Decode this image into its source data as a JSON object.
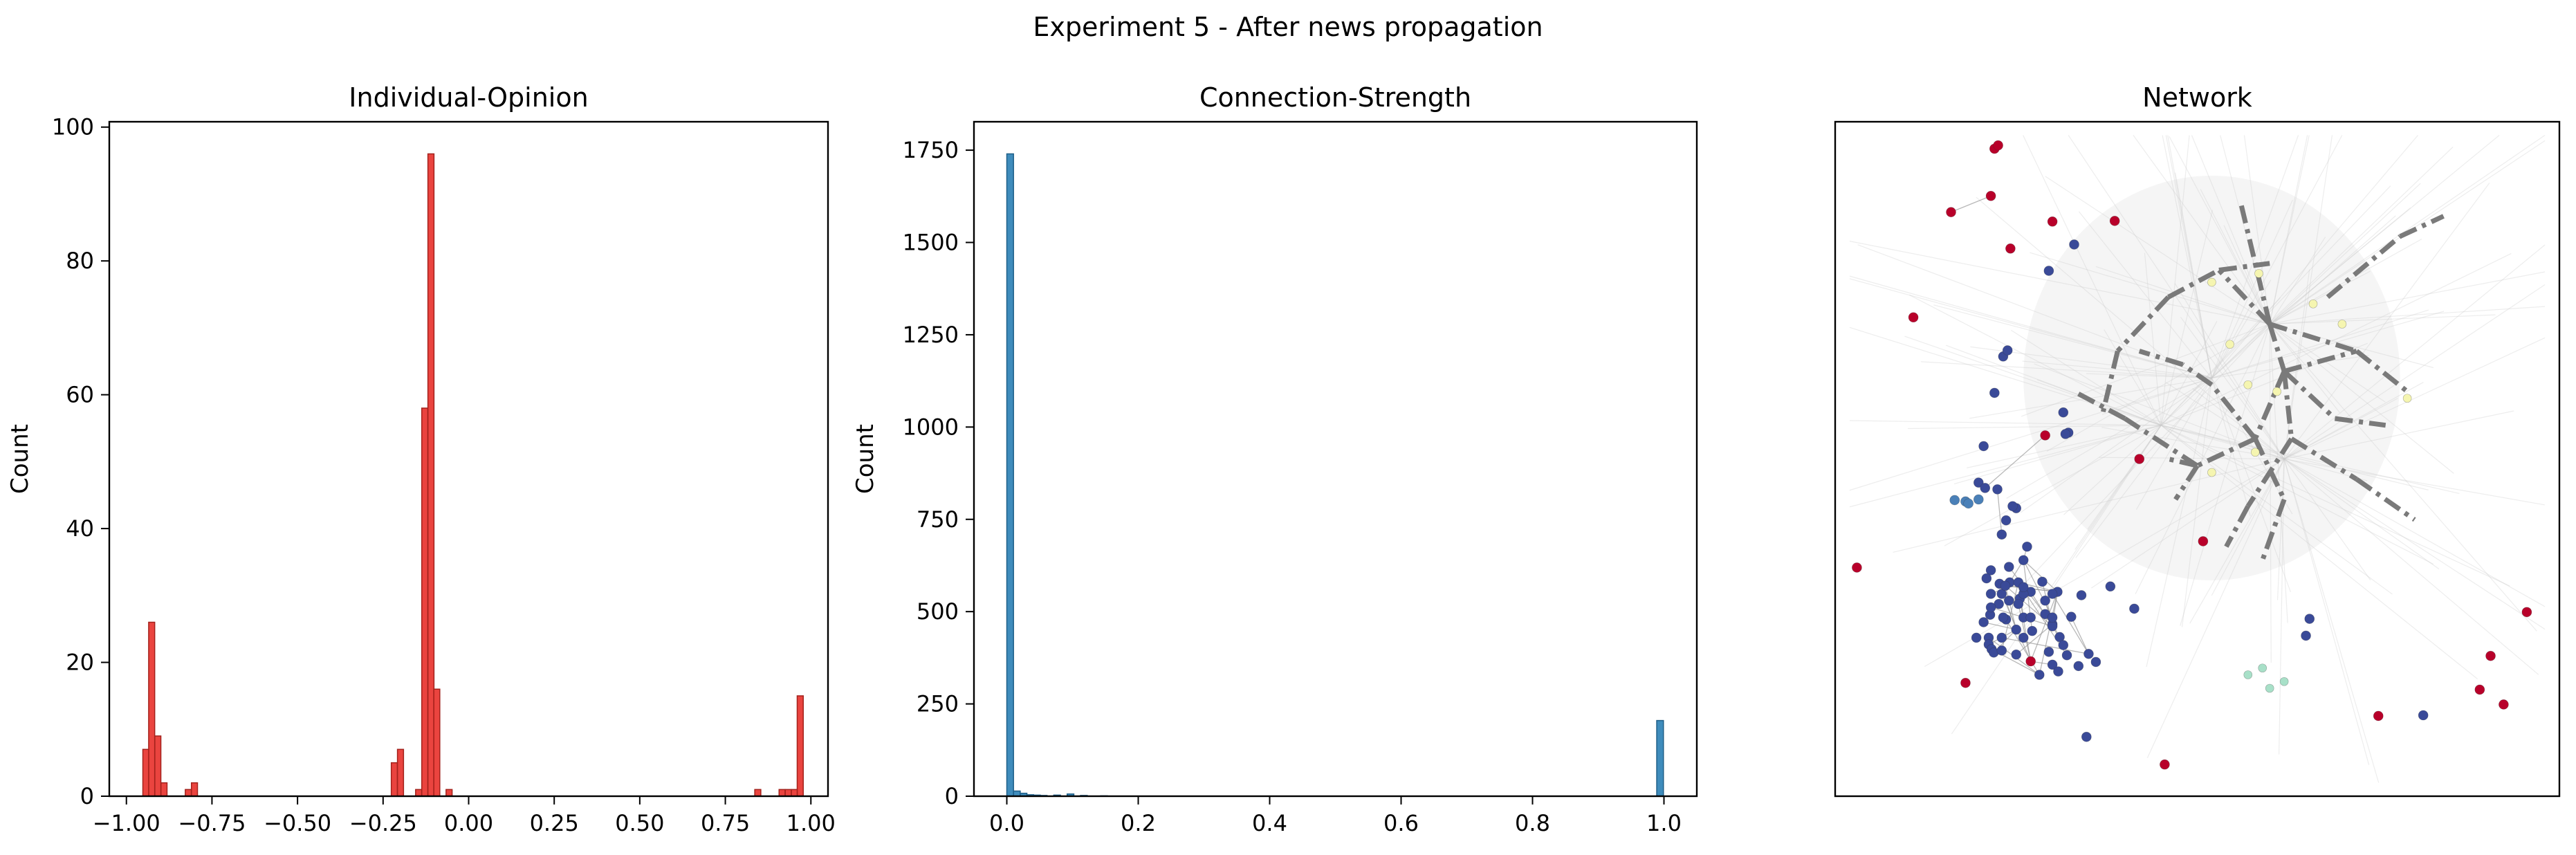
{
  "figure": {
    "suptitle": "Experiment 5 - After news propagation"
  },
  "chart_data": [
    {
      "type": "bar",
      "title": "Individual-Opinion",
      "xlabel": "",
      "ylabel": "Count",
      "xlim": [
        -1.05,
        1.05
      ],
      "ylim": [
        0,
        100.8
      ],
      "xticks": [
        -1.0,
        -0.75,
        -0.5,
        -0.25,
        0.0,
        0.25,
        0.5,
        0.75,
        1.0
      ],
      "xtick_labels": [
        "−1.00",
        "−0.75",
        "−0.50",
        "−0.25",
        "0.00",
        "0.25",
        "0.50",
        "0.75",
        "1.00"
      ],
      "yticks": [
        0,
        20,
        40,
        60,
        80,
        100
      ],
      "ytick_labels": [
        "0",
        "20",
        "40",
        "60",
        "80",
        "100"
      ],
      "bin_width": 0.0177,
      "color": "#e8302a",
      "edge_color": "#a3221c",
      "bins": [
        {
          "x": -0.952,
          "count": 7
        },
        {
          "x": -0.935,
          "count": 26
        },
        {
          "x": -0.917,
          "count": 9
        },
        {
          "x": -0.899,
          "count": 2
        },
        {
          "x": -0.828,
          "count": 1
        },
        {
          "x": -0.81,
          "count": 2
        },
        {
          "x": -0.226,
          "count": 5
        },
        {
          "x": -0.208,
          "count": 7
        },
        {
          "x": -0.155,
          "count": 1
        },
        {
          "x": -0.137,
          "count": 58
        },
        {
          "x": -0.119,
          "count": 96
        },
        {
          "x": -0.102,
          "count": 16
        },
        {
          "x": -0.066,
          "count": 1
        },
        {
          "x": 0.836,
          "count": 1
        },
        {
          "x": 0.907,
          "count": 1
        },
        {
          "x": 0.925,
          "count": 1
        },
        {
          "x": 0.943,
          "count": 1
        },
        {
          "x": 0.96,
          "count": 15
        }
      ]
    },
    {
      "type": "bar",
      "title": "Connection-Strength",
      "xlabel": "",
      "ylabel": "Count",
      "xlim": [
        -0.05,
        1.05
      ],
      "ylim": [
        0,
        1827
      ],
      "xticks": [
        0.0,
        0.2,
        0.4,
        0.6,
        0.8,
        1.0
      ],
      "xtick_labels": [
        "0.0",
        "0.2",
        "0.4",
        "0.6",
        "0.8",
        "1.0"
      ],
      "yticks": [
        0,
        250,
        500,
        750,
        1000,
        1250,
        1500,
        1750
      ],
      "ytick_labels": [
        "0",
        "250",
        "500",
        "750",
        "1000",
        "1250",
        "1500",
        "1750"
      ],
      "bin_width": 0.0102,
      "color": "#2a7fb5",
      "edge_color": "#1f5f88",
      "bins": [
        {
          "x": 0.0,
          "count": 1740
        },
        {
          "x": 0.0102,
          "count": 14
        },
        {
          "x": 0.0204,
          "count": 8
        },
        {
          "x": 0.0306,
          "count": 4
        },
        {
          "x": 0.0408,
          "count": 3
        },
        {
          "x": 0.051,
          "count": 2
        },
        {
          "x": 0.0714,
          "count": 3
        },
        {
          "x": 0.0918,
          "count": 6
        },
        {
          "x": 0.1122,
          "count": 2
        },
        {
          "x": 0.1428,
          "count": 1
        },
        {
          "x": 0.989,
          "count": 205
        }
      ]
    },
    {
      "type": "scatter",
      "title": "Network",
      "xlabel": "",
      "ylabel": "",
      "xlim": [
        0,
        1
      ],
      "ylim": [
        0,
        1
      ],
      "axes_ticks": false,
      "node_colors": {
        "negative": "#b8002a",
        "neutral": "#3a4a98",
        "mid": "#4a80b8",
        "positive": "#f5f5b0",
        "teal": "#a8e0c8"
      },
      "edge_colors": {
        "strong": "#7a7a7a",
        "faint": "#cccccc",
        "thin": "#9a9a9a"
      },
      "red_nodes": [
        [
          0.22,
          0.96
        ],
        [
          0.225,
          0.965
        ],
        [
          0.215,
          0.89
        ],
        [
          0.16,
          0.866
        ],
        [
          0.242,
          0.812
        ],
        [
          0.3,
          0.852
        ],
        [
          0.386,
          0.853
        ],
        [
          0.108,
          0.71
        ],
        [
          0.42,
          0.5
        ],
        [
          0.27,
          0.2
        ],
        [
          0.18,
          0.168
        ],
        [
          0.455,
          0.047
        ],
        [
          0.75,
          0.119
        ],
        [
          0.905,
          0.208
        ],
        [
          0.955,
          0.273
        ],
        [
          0.03,
          0.339
        ],
        [
          0.29,
          0.535
        ],
        [
          0.508,
          0.378
        ],
        [
          0.89,
          0.158
        ],
        [
          0.923,
          0.136
        ]
      ],
      "blue_nodes": [
        [
          0.33,
          0.818
        ],
        [
          0.295,
          0.779
        ],
        [
          0.232,
          0.652
        ],
        [
          0.238,
          0.661
        ],
        [
          0.22,
          0.598
        ],
        [
          0.205,
          0.519
        ],
        [
          0.315,
          0.569
        ],
        [
          0.322,
          0.539
        ],
        [
          0.318,
          0.537
        ],
        [
          0.198,
          0.465
        ],
        [
          0.224,
          0.455
        ],
        [
          0.25,
          0.427
        ],
        [
          0.245,
          0.43
        ],
        [
          0.207,
          0.457
        ],
        [
          0.236,
          0.409
        ],
        [
          0.23,
          0.388
        ],
        [
          0.265,
          0.37
        ],
        [
          0.26,
          0.35
        ],
        [
          0.24,
          0.34
        ],
        [
          0.215,
          0.335
        ],
        [
          0.209,
          0.323
        ],
        [
          0.227,
          0.315
        ],
        [
          0.215,
          0.3
        ],
        [
          0.27,
          0.303
        ],
        [
          0.307,
          0.303
        ],
        [
          0.34,
          0.298
        ],
        [
          0.255,
          0.293
        ],
        [
          0.38,
          0.311
        ],
        [
          0.413,
          0.278
        ],
        [
          0.26,
          0.235
        ],
        [
          0.272,
          0.245
        ],
        [
          0.3,
          0.255
        ],
        [
          0.31,
          0.236
        ],
        [
          0.326,
          0.266
        ],
        [
          0.236,
          0.262
        ],
        [
          0.205,
          0.258
        ],
        [
          0.32,
          0.209
        ],
        [
          0.315,
          0.224
        ],
        [
          0.35,
          0.211
        ],
        [
          0.195,
          0.235
        ],
        [
          0.3,
          0.195
        ],
        [
          0.308,
          0.185
        ],
        [
          0.336,
          0.193
        ],
        [
          0.36,
          0.199
        ],
        [
          0.295,
          0.214
        ],
        [
          0.282,
          0.18
        ],
        [
          0.25,
          0.21
        ],
        [
          0.23,
          0.235
        ],
        [
          0.212,
          0.235
        ],
        [
          0.212,
          0.225
        ],
        [
          0.26,
          0.265
        ],
        [
          0.29,
          0.29
        ],
        [
          0.25,
          0.247
        ],
        [
          0.27,
          0.265
        ],
        [
          0.253,
          0.285
        ],
        [
          0.226,
          0.285
        ],
        [
          0.214,
          0.269
        ],
        [
          0.232,
          0.265
        ],
        [
          0.241,
          0.317
        ],
        [
          0.253,
          0.317
        ],
        [
          0.286,
          0.318
        ],
        [
          0.3,
          0.3
        ],
        [
          0.216,
          0.218
        ],
        [
          0.219,
          0.213
        ],
        [
          0.23,
          0.216
        ],
        [
          0.215,
          0.28
        ],
        [
          0.3,
          0.252
        ],
        [
          0.24,
          0.29
        ],
        [
          0.23,
          0.3
        ],
        [
          0.26,
          0.3
        ],
        [
          0.26,
          0.31
        ],
        [
          0.29,
          0.27
        ],
        [
          0.3,
          0.265
        ],
        [
          0.235,
          0.312
        ],
        [
          0.347,
          0.088
        ],
        [
          0.65,
          0.238
        ],
        [
          0.655,
          0.263
        ],
        [
          0.812,
          0.12
        ]
      ],
      "mid_nodes": [
        [
          0.165,
          0.439
        ],
        [
          0.18,
          0.437
        ],
        [
          0.198,
          0.44
        ],
        [
          0.184,
          0.434
        ]
      ],
      "yellow_nodes": [
        [
          0.52,
          0.762
        ],
        [
          0.585,
          0.775
        ],
        [
          0.66,
          0.73
        ],
        [
          0.61,
          0.6
        ],
        [
          0.52,
          0.48
        ],
        [
          0.58,
          0.51
        ],
        [
          0.7,
          0.7
        ],
        [
          0.79,
          0.59
        ],
        [
          0.545,
          0.67
        ],
        [
          0.57,
          0.61
        ]
      ],
      "teal_nodes": [
        [
          0.57,
          0.18
        ],
        [
          0.6,
          0.16
        ],
        [
          0.62,
          0.17
        ],
        [
          0.59,
          0.19
        ]
      ],
      "strong_edges": [
        [
          [
            0.6,
            0.7
          ],
          [
            0.53,
            0.78
          ]
        ],
        [
          [
            0.6,
            0.7
          ],
          [
            0.62,
            0.63
          ]
        ],
        [
          [
            0.62,
            0.63
          ],
          [
            0.72,
            0.66
          ]
        ],
        [
          [
            0.72,
            0.66
          ],
          [
            0.79,
            0.6
          ]
        ],
        [
          [
            0.6,
            0.7
          ],
          [
            0.72,
            0.66
          ]
        ],
        [
          [
            0.62,
            0.63
          ],
          [
            0.58,
            0.53
          ]
        ],
        [
          [
            0.58,
            0.53
          ],
          [
            0.5,
            0.49
          ]
        ],
        [
          [
            0.5,
            0.49
          ],
          [
            0.46,
            0.5
          ]
        ],
        [
          [
            0.5,
            0.49
          ],
          [
            0.4,
            0.56
          ]
        ],
        [
          [
            0.4,
            0.56
          ],
          [
            0.33,
            0.6
          ]
        ],
        [
          [
            0.62,
            0.63
          ],
          [
            0.63,
            0.53
          ]
        ],
        [
          [
            0.63,
            0.53
          ],
          [
            0.72,
            0.47
          ]
        ],
        [
          [
            0.63,
            0.53
          ],
          [
            0.57,
            0.43
          ]
        ],
        [
          [
            0.57,
            0.43
          ],
          [
            0.54,
            0.37
          ]
        ],
        [
          [
            0.68,
            0.74
          ],
          [
            0.78,
            0.83
          ]
        ],
        [
          [
            0.78,
            0.83
          ],
          [
            0.84,
            0.86
          ]
        ],
        [
          [
            0.6,
            0.7
          ],
          [
            0.56,
            0.88
          ]
        ],
        [
          [
            0.62,
            0.63
          ],
          [
            0.69,
            0.56
          ]
        ],
        [
          [
            0.69,
            0.56
          ],
          [
            0.76,
            0.55
          ]
        ],
        [
          [
            0.58,
            0.53
          ],
          [
            0.52,
            0.61
          ]
        ],
        [
          [
            0.52,
            0.61
          ],
          [
            0.48,
            0.64
          ]
        ],
        [
          [
            0.48,
            0.64
          ],
          [
            0.42,
            0.66
          ]
        ],
        [
          [
            0.46,
            0.74
          ],
          [
            0.39,
            0.66
          ]
        ],
        [
          [
            0.39,
            0.66
          ],
          [
            0.37,
            0.57
          ]
        ],
        [
          [
            0.5,
            0.49
          ],
          [
            0.47,
            0.44
          ]
        ],
        [
          [
            0.46,
            0.74
          ],
          [
            0.53,
            0.78
          ]
        ],
        [
          [
            0.53,
            0.78
          ],
          [
            0.6,
            0.79
          ]
        ],
        [
          [
            0.58,
            0.53
          ],
          [
            0.62,
            0.44
          ]
        ],
        [
          [
            0.62,
            0.44
          ],
          [
            0.59,
            0.35
          ]
        ],
        [
          [
            0.72,
            0.47
          ],
          [
            0.8,
            0.41
          ]
        ]
      ]
    }
  ]
}
